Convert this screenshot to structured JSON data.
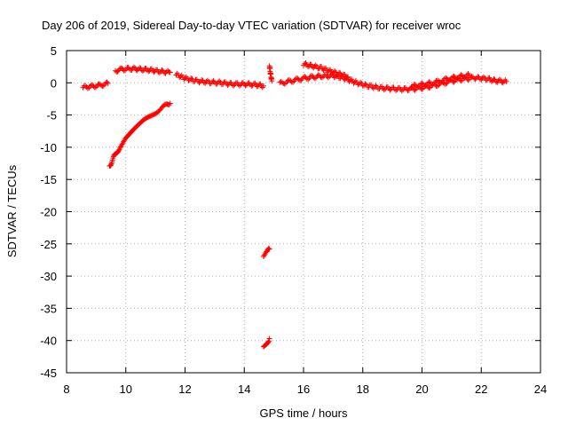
{
  "chart_data": {
    "type": "scatter",
    "title": "Day 206 of 2019, Sidereal Day-to-day VTEC variation (SDTVAR) for receiver wroc",
    "xlabel": "GPS time / hours",
    "ylabel": "SDTVAR / TECUs",
    "xlim": [
      8,
      24
    ],
    "ylim": [
      -45,
      5
    ],
    "xticks": [
      8,
      10,
      12,
      14,
      16,
      18,
      20,
      22,
      24
    ],
    "yticks": [
      5,
      0,
      -5,
      -10,
      -15,
      -20,
      -25,
      -30,
      -35,
      -40,
      -45
    ],
    "grid": true,
    "marker": "+",
    "color": "#ff0000",
    "series": [
      {
        "name": "SDTVAR",
        "segments": [
          {
            "x": [
              8.55,
              8.8,
              9.1,
              9.4
            ],
            "y": [
              -0.7,
              -0.6,
              -0.4,
              -0.1
            ]
          },
          {
            "x": [
              9.65,
              9.9,
              10.2,
              10.5,
              10.8,
              11.1,
              11.5
            ],
            "y": [
              1.9,
              2.1,
              2.2,
              2.1,
              2.0,
              1.8,
              1.6
            ]
          },
          {
            "x": [
              11.7,
              12.0,
              12.4,
              12.8,
              13.2,
              13.6,
              14.0,
              14.4,
              14.65
            ],
            "y": [
              1.3,
              0.7,
              0.3,
              0.1,
              0.0,
              -0.2,
              -0.2,
              -0.3,
              -0.5
            ]
          },
          {
            "x": [
              9.45,
              9.6,
              9.8,
              10.0,
              10.3,
              10.6,
              10.9,
              11.2,
              11.5
            ],
            "y": [
              -13.0,
              -11.5,
              -10.0,
              -8.8,
              -7.3,
              -6.0,
              -4.9,
              -3.9,
              -3.2
            ]
          },
          {
            "x": [
              14.65,
              14.75,
              14.85
            ],
            "y": [
              -27.0,
              -26.4,
              -25.8
            ]
          },
          {
            "x": [
              14.65,
              14.75,
              14.85
            ],
            "y": [
              -41.0,
              -40.4,
              -39.7
            ]
          },
          {
            "x": [
              14.85,
              14.88,
              14.93
            ],
            "y": [
              2.7,
              1.5,
              0.3
            ]
          },
          {
            "x": [
              15.2,
              15.6,
              16.0,
              16.5,
              17.0,
              17.4,
              17.8,
              18.2,
              18.6,
              19.0,
              19.4,
              19.8,
              20.2,
              20.6,
              21.0,
              21.4,
              21.8,
              22.2,
              22.5,
              22.85
            ],
            "y": [
              -0.1,
              0.3,
              0.7,
              1.0,
              1.1,
              0.7,
              0.0,
              -0.5,
              -0.8,
              -0.9,
              -1.0,
              -0.9,
              -0.6,
              -0.2,
              0.3,
              0.6,
              0.8,
              0.6,
              0.3,
              0.2
            ]
          },
          {
            "x": [
              16.0,
              16.3,
              16.6,
              16.9,
              17.2,
              17.5
            ],
            "y": [
              2.9,
              2.6,
              2.3,
              1.8,
              1.4,
              0.9
            ]
          },
          {
            "x": [
              19.6,
              20.0,
              20.4,
              20.8,
              21.2,
              21.6
            ],
            "y": [
              -0.6,
              -0.3,
              0.0,
              0.5,
              0.9,
              1.2
            ]
          }
        ]
      }
    ]
  }
}
